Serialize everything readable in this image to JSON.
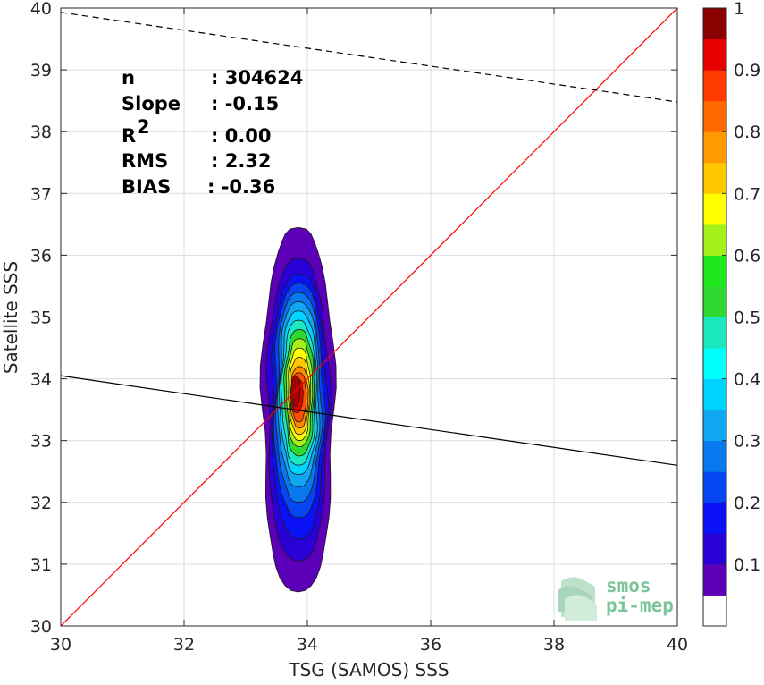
{
  "chart_data": {
    "type": "heatmap",
    "subtype": "normalized density contour (filled)",
    "xlabel": "TSG (SAMOS) SSS",
    "ylabel": "Satellite SSS",
    "xlim": [
      30,
      40
    ],
    "ylim": [
      30,
      40
    ],
    "xticks": [
      30,
      32,
      34,
      36,
      38,
      40
    ],
    "yticks": [
      30,
      31,
      32,
      33,
      34,
      35,
      36,
      37,
      38,
      39,
      40
    ],
    "grid": true,
    "stats": [
      {
        "label": "n",
        "value": ": 304624"
      },
      {
        "label": "Slope",
        "value": ": -0.15"
      },
      {
        "label": "R",
        "sup": "2",
        "value": ": 0.00"
      },
      {
        "label": "RMS",
        "value": ": 2.32"
      },
      {
        "label": "BIAS",
        "value": ": -0.36"
      }
    ],
    "lines": [
      {
        "kind": "one-to-one",
        "color": "#ff0000",
        "style": "solid",
        "points": [
          [
            30,
            30
          ],
          [
            40,
            40
          ]
        ]
      },
      {
        "kind": "regression",
        "color": "#000000",
        "style": "solid",
        "points": [
          [
            30,
            34.05
          ],
          [
            40,
            32.6
          ]
        ]
      },
      {
        "kind": "reference",
        "color": "#000000",
        "style": "dashed",
        "points": [
          [
            30,
            39.93
          ],
          [
            40,
            38.48
          ]
        ]
      }
    ],
    "contour_levels": [
      {
        "level": 0.05,
        "color": "#5b00b8",
        "cx": 33.85,
        "cy": 33.5,
        "halfWidth": 0.58,
        "top": 36.45,
        "bottom": 30.55
      },
      {
        "level": 0.1,
        "color": "#2a00d9",
        "cx": 33.85,
        "cy": 33.55,
        "halfWidth": 0.5,
        "top": 35.95,
        "bottom": 31.05
      },
      {
        "level": 0.15,
        "color": "#0a12f5",
        "cx": 33.86,
        "cy": 33.6,
        "halfWidth": 0.44,
        "top": 35.7,
        "bottom": 31.4
      },
      {
        "level": 0.2,
        "color": "#0645f2",
        "cx": 33.86,
        "cy": 33.62,
        "halfWidth": 0.4,
        "top": 35.55,
        "bottom": 31.75
      },
      {
        "level": 0.25,
        "color": "#0878ee",
        "cx": 33.86,
        "cy": 33.65,
        "halfWidth": 0.36,
        "top": 35.4,
        "bottom": 32.0
      },
      {
        "level": 0.3,
        "color": "#10a6f2",
        "cx": 33.86,
        "cy": 33.68,
        "halfWidth": 0.33,
        "top": 35.25,
        "bottom": 32.25
      },
      {
        "level": 0.35,
        "color": "#00d4ff",
        "cx": 33.86,
        "cy": 33.7,
        "halfWidth": 0.3,
        "top": 35.1,
        "bottom": 32.45
      },
      {
        "level": 0.4,
        "color": "#1ce8c0",
        "cx": 33.86,
        "cy": 33.72,
        "halfWidth": 0.27,
        "top": 34.95,
        "bottom": 32.6
      },
      {
        "level": 0.5,
        "color": "#2ed82e",
        "cx": 33.87,
        "cy": 33.75,
        "halfWidth": 0.24,
        "top": 34.8,
        "bottom": 32.75
      },
      {
        "level": 0.6,
        "color": "#a6f01a",
        "cx": 33.87,
        "cy": 33.75,
        "halfWidth": 0.21,
        "top": 34.65,
        "bottom": 32.9
      },
      {
        "level": 0.65,
        "color": "#ffff00",
        "cx": 33.87,
        "cy": 33.76,
        "halfWidth": 0.18,
        "top": 34.5,
        "bottom": 33.0
      },
      {
        "level": 0.7,
        "color": "#ffc800",
        "cx": 33.87,
        "cy": 33.76,
        "halfWidth": 0.16,
        "top": 34.35,
        "bottom": 33.1
      },
      {
        "level": 0.75,
        "color": "#ff8c00",
        "cx": 33.87,
        "cy": 33.76,
        "halfWidth": 0.14,
        "top": 34.2,
        "bottom": 33.2
      },
      {
        "level": 0.8,
        "color": "#ff5000",
        "cx": 33.86,
        "cy": 33.76,
        "halfWidth": 0.12,
        "top": 34.1,
        "bottom": 33.3
      },
      {
        "level": 0.9,
        "color": "#e80000",
        "cx": 33.83,
        "cy": 33.8,
        "halfWidth": 0.1,
        "top": 34.0,
        "bottom": 33.45
      },
      {
        "level": 0.95,
        "color": "#a80000",
        "cx": 33.81,
        "cy": 33.85,
        "halfWidth": 0.07,
        "top": 34.05,
        "bottom": 33.55
      }
    ],
    "colorbar": {
      "ticks": [
        "0.1",
        "0.2",
        "0.3",
        "0.4",
        "0.5",
        "0.6",
        "0.7",
        "0.8",
        "0.9",
        "1"
      ],
      "tick_values": [
        0.1,
        0.2,
        0.3,
        0.4,
        0.5,
        0.6,
        0.7,
        0.8,
        0.9,
        1.0
      ],
      "range": [
        0,
        1
      ],
      "bins": [
        {
          "from": 0.0,
          "to": 0.05,
          "color": "#ffffff"
        },
        {
          "from": 0.05,
          "to": 0.1,
          "color": "#5b00b8"
        },
        {
          "from": 0.1,
          "to": 0.15,
          "color": "#2a00d9"
        },
        {
          "from": 0.15,
          "to": 0.2,
          "color": "#0a12f5"
        },
        {
          "from": 0.2,
          "to": 0.25,
          "color": "#0645f2"
        },
        {
          "from": 0.25,
          "to": 0.3,
          "color": "#0878ee"
        },
        {
          "from": 0.3,
          "to": 0.35,
          "color": "#10a6f2"
        },
        {
          "from": 0.35,
          "to": 0.4,
          "color": "#00d4ff"
        },
        {
          "from": 0.4,
          "to": 0.45,
          "color": "#00ffff"
        },
        {
          "from": 0.45,
          "to": 0.5,
          "color": "#1ce8c0"
        },
        {
          "from": 0.5,
          "to": 0.55,
          "color": "#2ed82e"
        },
        {
          "from": 0.55,
          "to": 0.6,
          "color": "#1ee81e"
        },
        {
          "from": 0.6,
          "to": 0.65,
          "color": "#a6f01a"
        },
        {
          "from": 0.65,
          "to": 0.7,
          "color": "#ffff00"
        },
        {
          "from": 0.7,
          "to": 0.75,
          "color": "#ffc800"
        },
        {
          "from": 0.75,
          "to": 0.8,
          "color": "#ff9a00"
        },
        {
          "from": 0.8,
          "to": 0.85,
          "color": "#ff6a00"
        },
        {
          "from": 0.85,
          "to": 0.9,
          "color": "#ff3a00"
        },
        {
          "from": 0.9,
          "to": 0.95,
          "color": "#e80000"
        },
        {
          "from": 0.95,
          "to": 1.0,
          "color": "#8b0000"
        }
      ]
    }
  },
  "logo": {
    "line1": "smos",
    "line2": "pi-mep",
    "color": "#7ec49a"
  }
}
